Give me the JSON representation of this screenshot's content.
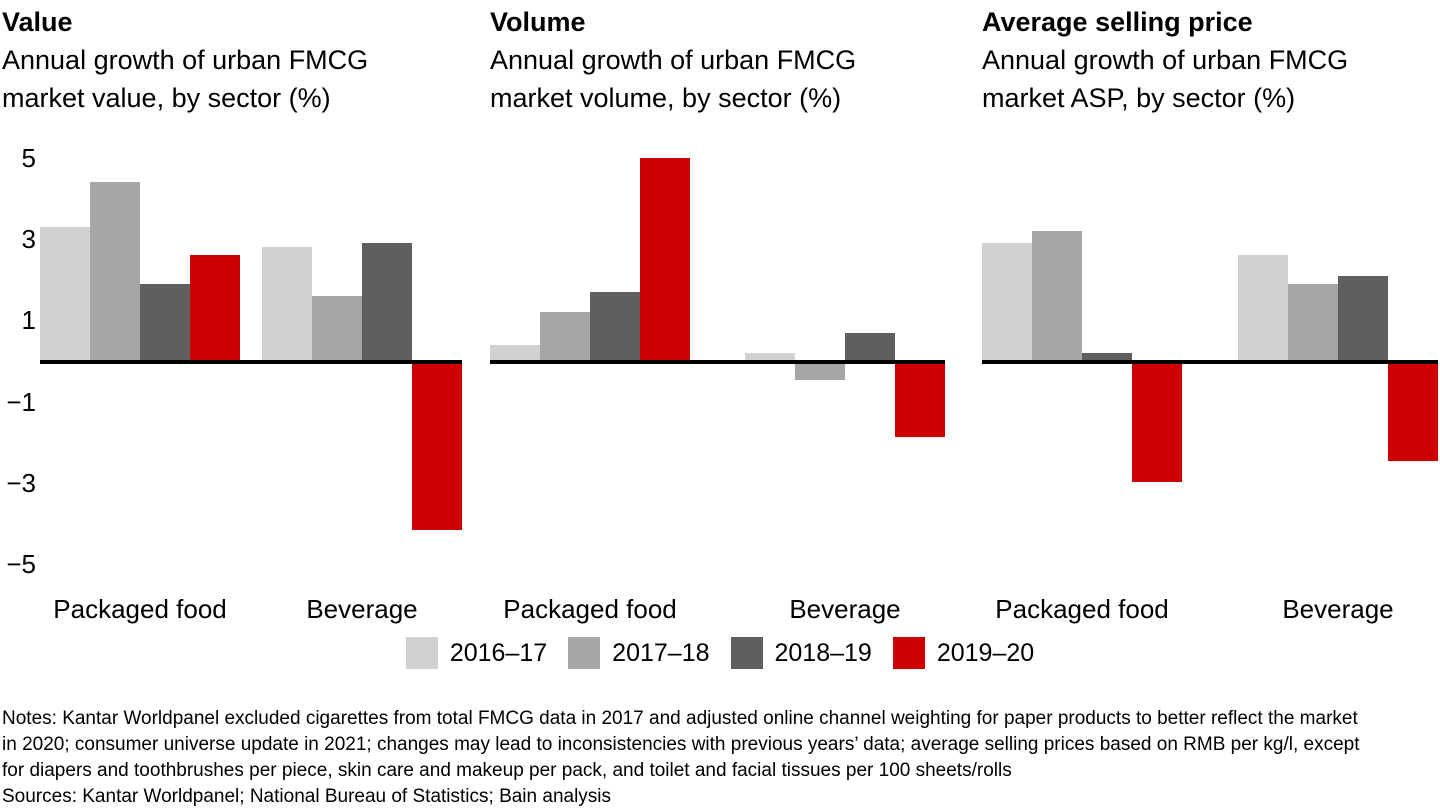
{
  "chart_data": [
    {
      "type": "bar",
      "title": "Value",
      "subtitle": "Annual growth of urban FMCG market value, by sector (%)",
      "subtitle_lines": [
        "Annual growth of urban FMCG",
        "market value, by sector (%)"
      ],
      "categories": [
        "Packaged food",
        "Beverage"
      ],
      "series": [
        {
          "name": "2016–17",
          "color": "#d1d1d1",
          "values": [
            3.3,
            2.8
          ]
        },
        {
          "name": "2017–18",
          "color": "#a6a6a6",
          "values": [
            4.4,
            1.6
          ]
        },
        {
          "name": "2018–19",
          "color": "#5f5f5f",
          "values": [
            1.9,
            2.9
          ]
        },
        {
          "name": "2019–20",
          "color": "#cc0000",
          "values": [
            2.6,
            -4.1
          ]
        }
      ],
      "ylim": [
        -5,
        5
      ],
      "yticks": [
        5,
        3,
        1,
        -1,
        -3,
        -5
      ],
      "ytick_labels": [
        "5",
        "3",
        "1",
        "−1",
        "−3",
        "−5"
      ],
      "grid": false,
      "legend_position": "bottom-center"
    },
    {
      "type": "bar",
      "title": "Volume",
      "subtitle": "Annual growth of urban FMCG market volume, by sector (%)",
      "subtitle_lines": [
        "Annual growth of urban FMCG",
        "market volume, by sector (%)"
      ],
      "categories": [
        "Packaged food",
        "Beverage"
      ],
      "series": [
        {
          "name": "2016–17",
          "color": "#d1d1d1",
          "values": [
            0.4,
            0.2
          ]
        },
        {
          "name": "2017–18",
          "color": "#a6a6a6",
          "values": [
            1.2,
            -0.4
          ]
        },
        {
          "name": "2018–19",
          "color": "#5f5f5f",
          "values": [
            1.7,
            0.7
          ]
        },
        {
          "name": "2019–20",
          "color": "#cc0000",
          "values": [
            5.0,
            -1.8
          ]
        }
      ],
      "ylim": [
        -5,
        5
      ],
      "grid": false
    },
    {
      "type": "bar",
      "title": "Average selling price",
      "subtitle": "Annual growth of urban FMCG market ASP, by sector (%)",
      "subtitle_lines": [
        "Annual growth of urban FMCG",
        "market ASP, by sector (%)"
      ],
      "categories": [
        "Packaged food",
        "Beverage"
      ],
      "series": [
        {
          "name": "2016–17",
          "color": "#d1d1d1",
          "values": [
            2.9,
            2.6
          ]
        },
        {
          "name": "2017–18",
          "color": "#a6a6a6",
          "values": [
            3.2,
            1.9
          ]
        },
        {
          "name": "2018–19",
          "color": "#5f5f5f",
          "values": [
            0.2,
            2.1
          ]
        },
        {
          "name": "2019–20",
          "color": "#cc0000",
          "values": [
            -2.9,
            -2.4
          ]
        }
      ],
      "ylim": [
        -5,
        5
      ],
      "grid": false
    }
  ],
  "colors": {
    "background": "#ffffff",
    "axis": "#000000",
    "text": "#000000",
    "series_2016_17": "#d1d1d1",
    "series_2017_18": "#a6a6a6",
    "series_2018_19": "#5f5f5f",
    "series_2019_20": "#cc0000"
  },
  "notes": {
    "lines": [
      "Notes: Kantar Worldpanel excluded cigarettes from total FMCG data in 2017 and adjusted online channel weighting for paper products to better reflect the market",
      "in 2020; consumer universe update in 2021; changes may lead to inconsistencies with previous years’ data; average selling prices based on RMB per kg/l, except",
      "for diapers and toothbrushes per piece, skin care and makeup per pack, and toilet and facial tissues per 100 sheets/rolls"
    ],
    "sources": "Sources: Kantar Worldpanel; National Bureau of Statistics; Bain analysis"
  }
}
